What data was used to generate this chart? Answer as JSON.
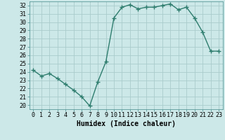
{
  "x": [
    0,
    1,
    2,
    3,
    4,
    5,
    6,
    7,
    8,
    9,
    10,
    11,
    12,
    13,
    14,
    15,
    16,
    17,
    18,
    19,
    20,
    21,
    22,
    23
  ],
  "y": [
    24.2,
    23.5,
    23.8,
    23.2,
    22.5,
    21.8,
    21.0,
    19.9,
    22.8,
    25.2,
    30.5,
    31.8,
    32.1,
    31.6,
    31.8,
    31.8,
    32.0,
    32.2,
    31.5,
    31.8,
    30.5,
    28.8,
    26.5,
    26.5
  ],
  "line_color": "#2E7D6E",
  "marker": "+",
  "marker_size": 4,
  "bg_color": "#cce8e8",
  "grid_color": "#aacccc",
  "xlabel": "Humidex (Indice chaleur)",
  "xlim": [
    -0.5,
    23.5
  ],
  "ylim": [
    19.5,
    32.5
  ],
  "xticks": [
    0,
    1,
    2,
    3,
    4,
    5,
    6,
    7,
    8,
    9,
    10,
    11,
    12,
    13,
    14,
    15,
    16,
    17,
    18,
    19,
    20,
    21,
    22,
    23
  ],
  "yticks": [
    20,
    21,
    22,
    23,
    24,
    25,
    26,
    27,
    28,
    29,
    30,
    31,
    32
  ],
  "tick_fontsize": 6,
  "label_fontsize": 7,
  "line_width": 1.0,
  "spine_color": "#5a9a9a"
}
